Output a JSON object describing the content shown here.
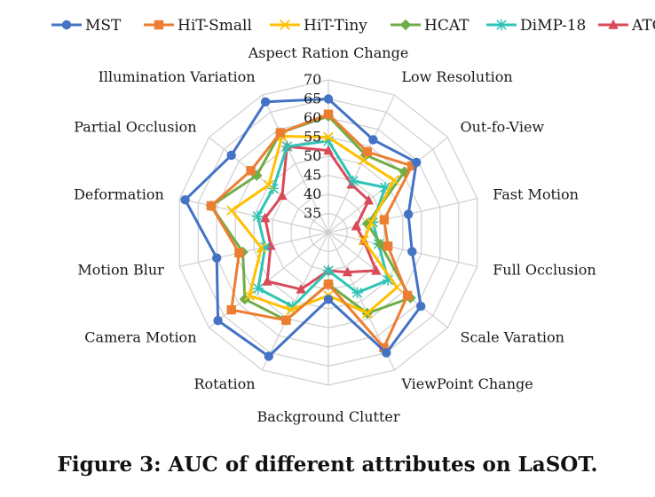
{
  "caption": "Figure 3: AUC of different attributes on LaSOT.",
  "chart_data": {
    "type": "radar",
    "title": "",
    "categories": [
      "Aspect Ration Change",
      "Low Resolution",
      "Out-fo-View",
      "Fast Motion",
      "Full Occlusion",
      "Scale Varation",
      "ViewPoint Change",
      "Background Clutter",
      "Rotation",
      "Camera Motion",
      "Motion Blur",
      "Deformation",
      "Partial Occlusion",
      "Illumination Variation"
    ],
    "ticks": [
      35,
      40,
      45,
      50,
      55,
      60,
      65,
      70
    ],
    "rlim": [
      30,
      70
    ],
    "grid": true,
    "legend": "top",
    "series": [
      {
        "name": "MST",
        "color": "#4472C4",
        "marker": "circle",
        "values": [
          65,
          57,
          59.5,
          51.5,
          52.5,
          61,
          65,
          47.5,
          66,
          67,
          60,
          68.5,
          62.5,
          68
        ]
      },
      {
        "name": "HiT-Small",
        "color": "#ED7D31",
        "marker": "square",
        "values": [
          61,
          53.5,
          58,
          45,
          46,
          56.5,
          63.5,
          43.5,
          55.5,
          62.5,
          54,
          61.5,
          56,
          59
        ]
      },
      {
        "name": "HiT-Tiny",
        "color": "#FFC000",
        "marker": "x",
        "values": [
          55,
          51,
          52,
          41.5,
          39.5,
          53,
          53.5,
          46.5,
          52.5,
          56.5,
          48,
          56,
          50,
          58
        ]
      },
      {
        "name": "HCAT",
        "color": "#70AD47",
        "marker": "diamond",
        "values": [
          60.5,
          52.5,
          55.5,
          40.5,
          44,
          57.5,
          53.5,
          43.5,
          55.5,
          58,
          53,
          61.5,
          54,
          59
        ]
      },
      {
        "name": "DiMP-18",
        "color": "#2EC4B6",
        "marker": "star",
        "values": [
          54,
          45,
          49,
          42,
          43.5,
          50,
          47.5,
          40,
          51.5,
          53.5,
          47,
          49,
          48.5,
          55
        ]
      },
      {
        "name": "ATOM",
        "color": "#D94A5A",
        "marker": "triangle",
        "values": [
          51.5,
          44,
          43.5,
          37.5,
          39.5,
          46,
          41.5,
          40,
          46.5,
          50.5,
          45.5,
          47,
          45.5,
          55
        ]
      }
    ]
  }
}
